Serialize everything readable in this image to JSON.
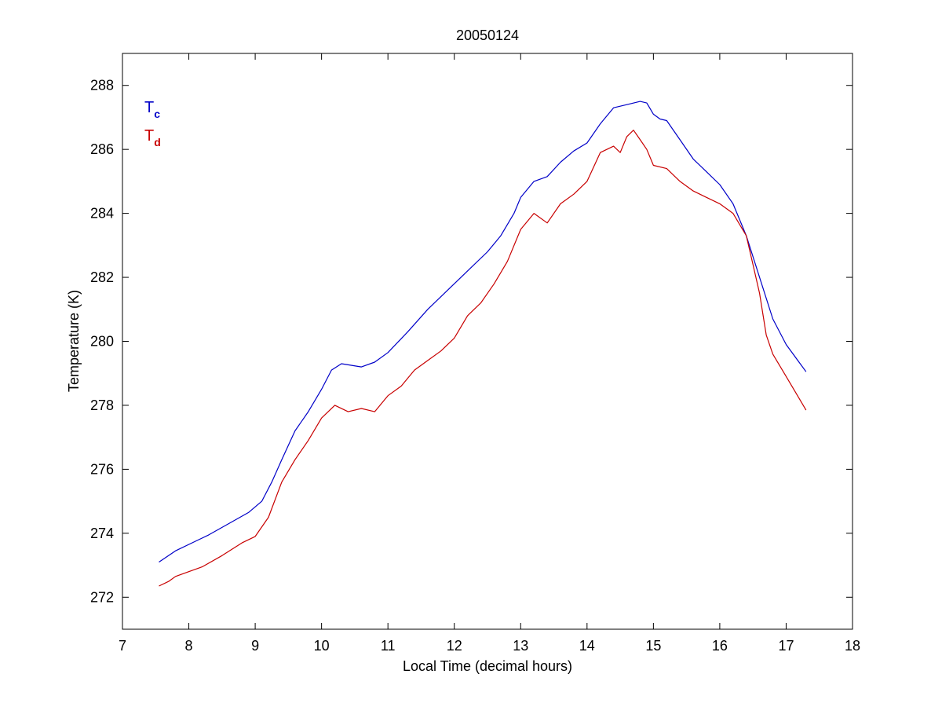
{
  "chart_data": {
    "type": "line",
    "title": "20050124",
    "xlabel": "Local Time (decimal hours)",
    "ylabel": "Temperature (K)",
    "xlim": [
      7,
      18
    ],
    "ylim": [
      271,
      289
    ],
    "xticks": [
      7,
      8,
      9,
      10,
      11,
      12,
      13,
      14,
      15,
      16,
      17,
      18
    ],
    "yticks": [
      272,
      274,
      276,
      278,
      280,
      282,
      284,
      286,
      288
    ],
    "grid": false,
    "legend_placement": "top-left",
    "series": [
      {
        "name": "Tc",
        "label_main": "T",
        "label_sub": "c",
        "color": "#0000c8",
        "x": [
          7.55,
          7.8,
          8.1,
          8.3,
          8.6,
          8.9,
          9.1,
          9.25,
          9.4,
          9.6,
          9.8,
          10.0,
          10.15,
          10.3,
          10.6,
          10.8,
          11.0,
          11.3,
          11.6,
          11.9,
          12.2,
          12.5,
          12.7,
          12.9,
          13.0,
          13.2,
          13.4,
          13.6,
          13.8,
          14.0,
          14.2,
          14.4,
          14.6,
          14.8,
          14.9,
          15.0,
          15.1,
          15.2,
          15.4,
          15.6,
          15.8,
          16.0,
          16.2,
          16.4,
          16.6,
          16.8,
          17.0,
          17.3
        ],
        "values": [
          273.1,
          273.45,
          273.75,
          273.95,
          274.3,
          274.65,
          275.0,
          275.6,
          276.3,
          277.2,
          277.8,
          278.5,
          279.1,
          279.3,
          279.2,
          279.35,
          279.65,
          280.3,
          281.0,
          281.6,
          282.2,
          282.8,
          283.3,
          284.0,
          284.5,
          285.0,
          285.15,
          285.6,
          285.95,
          286.2,
          286.8,
          287.3,
          287.4,
          287.5,
          287.45,
          287.1,
          286.95,
          286.9,
          286.3,
          285.7,
          285.3,
          284.9,
          284.3,
          283.3,
          282.0,
          280.7,
          279.9,
          279.05
        ]
      },
      {
        "name": "Td",
        "label_main": "T",
        "label_sub": "d",
        "color": "#c80000",
        "x": [
          7.55,
          7.7,
          7.8,
          8.0,
          8.2,
          8.5,
          8.8,
          9.0,
          9.2,
          9.4,
          9.6,
          9.8,
          10.0,
          10.2,
          10.4,
          10.6,
          10.8,
          11.0,
          11.2,
          11.4,
          11.6,
          11.8,
          12.0,
          12.2,
          12.4,
          12.6,
          12.8,
          13.0,
          13.2,
          13.4,
          13.6,
          13.8,
          14.0,
          14.2,
          14.4,
          14.5,
          14.6,
          14.7,
          14.8,
          14.9,
          15.0,
          15.2,
          15.4,
          15.6,
          15.8,
          16.0,
          16.2,
          16.4,
          16.5,
          16.6,
          16.7,
          16.8,
          17.0,
          17.2,
          17.3
        ],
        "values": [
          272.35,
          272.5,
          272.65,
          272.8,
          272.95,
          273.3,
          273.7,
          273.9,
          274.5,
          275.6,
          276.3,
          276.9,
          277.6,
          278.0,
          277.8,
          277.9,
          277.8,
          278.3,
          278.6,
          279.1,
          279.4,
          279.7,
          280.1,
          280.8,
          281.2,
          281.8,
          282.5,
          283.5,
          284.0,
          283.7,
          284.3,
          284.6,
          285.0,
          285.9,
          286.1,
          285.9,
          286.4,
          286.6,
          286.3,
          286.0,
          285.5,
          285.4,
          285.0,
          284.7,
          284.5,
          284.3,
          284.0,
          283.3,
          282.4,
          281.5,
          280.2,
          279.6,
          278.9,
          278.2,
          277.85
        ]
      }
    ]
  }
}
